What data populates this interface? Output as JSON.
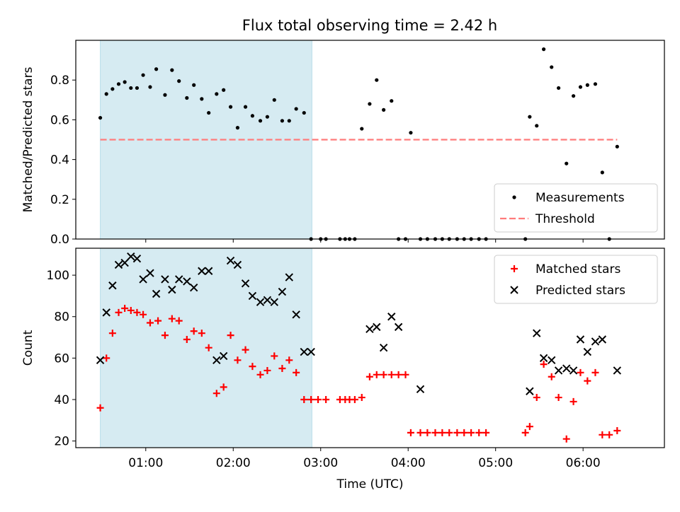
{
  "figure": {
    "title": "Flux total observing time = 2.42 h"
  },
  "chart_data": [
    {
      "type": "scatter",
      "title": "Flux total observing time = 2.42 h",
      "xlabel": "",
      "ylabel": "Matched/Predicted stars",
      "xlim": [
        0.2,
        6.93
      ],
      "ylim": [
        0.0,
        1.0
      ],
      "x_unit": "hours (UTC)",
      "shaded_span": {
        "x0": 0.48,
        "x1": 2.9,
        "color": "#add8e6"
      },
      "yticks": [
        "0.0",
        "0.2",
        "0.4",
        "0.6",
        "0.8"
      ],
      "legend": {
        "placement": "lower right",
        "items": [
          "Measurements",
          "Threshold"
        ]
      },
      "series": [
        {
          "name": "Measurements",
          "marker": "dot",
          "color": "#000000",
          "x": [
            0.48,
            0.55,
            0.62,
            0.69,
            0.76,
            0.83,
            0.9,
            0.97,
            1.05,
            1.12,
            1.22,
            1.3,
            1.38,
            1.47,
            1.55,
            1.64,
            1.72,
            1.81,
            1.89,
            1.97,
            2.05,
            2.14,
            2.22,
            2.31,
            2.39,
            2.47,
            2.56,
            2.64,
            2.72,
            2.81,
            2.89,
            3.0,
            3.06,
            3.22,
            3.28,
            3.33,
            3.39,
            3.47,
            3.56,
            3.64,
            3.72,
            3.81,
            3.89,
            3.97,
            4.03,
            4.14,
            4.22,
            4.31,
            4.39,
            4.47,
            4.56,
            4.64,
            4.72,
            4.81,
            4.89,
            5.34,
            5.39,
            5.47,
            5.55,
            5.64,
            5.72,
            5.81,
            5.89,
            5.97,
            6.05,
            6.14,
            6.22,
            6.3,
            6.39
          ],
          "y": [
            0.61,
            0.73,
            0.755,
            0.78,
            0.79,
            0.76,
            0.76,
            0.825,
            0.765,
            0.855,
            0.725,
            0.85,
            0.795,
            0.71,
            0.775,
            0.705,
            0.635,
            0.73,
            0.75,
            0.665,
            0.56,
            0.665,
            0.62,
            0.595,
            0.615,
            0.7,
            0.595,
            0.595,
            0.655,
            0.635,
            0.0,
            0.0,
            0.0,
            0.0,
            0.0,
            0.0,
            0.0,
            0.555,
            0.68,
            0.8,
            0.65,
            0.695,
            0.0,
            0.0,
            0.535,
            0.0,
            0.0,
            0.0,
            0.0,
            0.0,
            0.0,
            0.0,
            0.0,
            0.0,
            0.0,
            0.0,
            0.615,
            0.57,
            0.955,
            0.865,
            0.76,
            0.38,
            0.72,
            0.765,
            0.775,
            0.78,
            0.335,
            0.0,
            0.465
          ]
        },
        {
          "name": "Threshold",
          "marker": "dashed-line",
          "color": "#ff7b7b",
          "x": [
            0.48,
            6.39
          ],
          "y": [
            0.5,
            0.5
          ]
        }
      ]
    },
    {
      "type": "scatter",
      "title": "",
      "xlabel": "Time (UTC)",
      "ylabel": "Count",
      "xlim": [
        0.2,
        6.93
      ],
      "ylim": [
        16.8,
        113.0
      ],
      "x_unit": "hours (UTC)",
      "shaded_span": {
        "x0": 0.48,
        "x1": 2.9,
        "color": "#add8e6"
      },
      "yticks": [
        "20",
        "40",
        "60",
        "80",
        "100"
      ],
      "xticks": [
        "01:00",
        "02:00",
        "03:00",
        "04:00",
        "05:00",
        "06:00"
      ],
      "legend": {
        "placement": "upper right",
        "items": [
          "Matched stars",
          "Predicted stars"
        ]
      },
      "series": [
        {
          "name": "Matched stars",
          "marker": "plus",
          "color": "#ff0000",
          "x": [
            0.48,
            0.55,
            0.62,
            0.69,
            0.76,
            0.83,
            0.9,
            0.97,
            1.05,
            1.14,
            1.22,
            1.3,
            1.38,
            1.47,
            1.55,
            1.64,
            1.72,
            1.81,
            1.89,
            1.97,
            2.05,
            2.14,
            2.22,
            2.31,
            2.39,
            2.47,
            2.56,
            2.64,
            2.72,
            2.81,
            2.89,
            2.97,
            3.06,
            3.22,
            3.28,
            3.33,
            3.39,
            3.47,
            3.56,
            3.64,
            3.72,
            3.81,
            3.89,
            3.97,
            4.03,
            4.14,
            4.22,
            4.31,
            4.39,
            4.47,
            4.56,
            4.64,
            4.72,
            4.81,
            4.89,
            5.34,
            5.39,
            5.47,
            5.55,
            5.64,
            5.72,
            5.81,
            5.89,
            5.97,
            6.05,
            6.14,
            6.22,
            6.3,
            6.39
          ],
          "y": [
            36,
            60,
            72,
            82,
            84,
            83,
            82,
            81,
            77,
            78,
            71,
            79,
            78,
            69,
            73,
            72,
            65,
            43,
            46,
            71,
            59,
            64,
            56,
            52,
            54,
            61,
            55,
            59,
            53,
            40,
            40,
            40,
            40,
            40,
            40,
            40,
            40,
            41,
            51,
            52,
            52,
            52,
            52,
            52,
            24,
            24,
            24,
            24,
            24,
            24,
            24,
            24,
            24,
            24,
            24,
            24,
            27,
            41,
            57,
            51,
            41,
            21,
            39,
            53,
            49,
            53,
            23,
            23,
            25
          ]
        },
        {
          "name": "Predicted stars",
          "marker": "x",
          "color": "#000000",
          "x": [
            0.48,
            0.55,
            0.62,
            0.69,
            0.76,
            0.83,
            0.9,
            0.97,
            1.05,
            1.12,
            1.22,
            1.3,
            1.38,
            1.47,
            1.55,
            1.64,
            1.72,
            1.81,
            1.89,
            1.97,
            2.05,
            2.14,
            2.22,
            2.31,
            2.39,
            2.47,
            2.56,
            2.64,
            2.72,
            2.81,
            2.89,
            3.56,
            3.64,
            3.72,
            3.81,
            3.89,
            4.14,
            5.39,
            5.47,
            5.55,
            5.64,
            5.72,
            5.81,
            5.89,
            5.97,
            6.05,
            6.14,
            6.22,
            6.39
          ],
          "y": [
            59,
            82,
            95,
            105,
            106,
            109,
            108,
            98,
            101,
            91,
            98,
            93,
            98,
            97,
            94,
            102,
            102,
            59,
            61,
            107,
            105,
            96,
            90,
            87,
            88,
            87,
            92,
            99,
            81,
            63,
            63,
            74,
            75,
            65,
            80,
            75,
            45,
            44,
            72,
            60,
            59,
            54,
            55,
            54,
            69,
            63,
            68,
            69,
            54
          ]
        }
      ]
    }
  ]
}
